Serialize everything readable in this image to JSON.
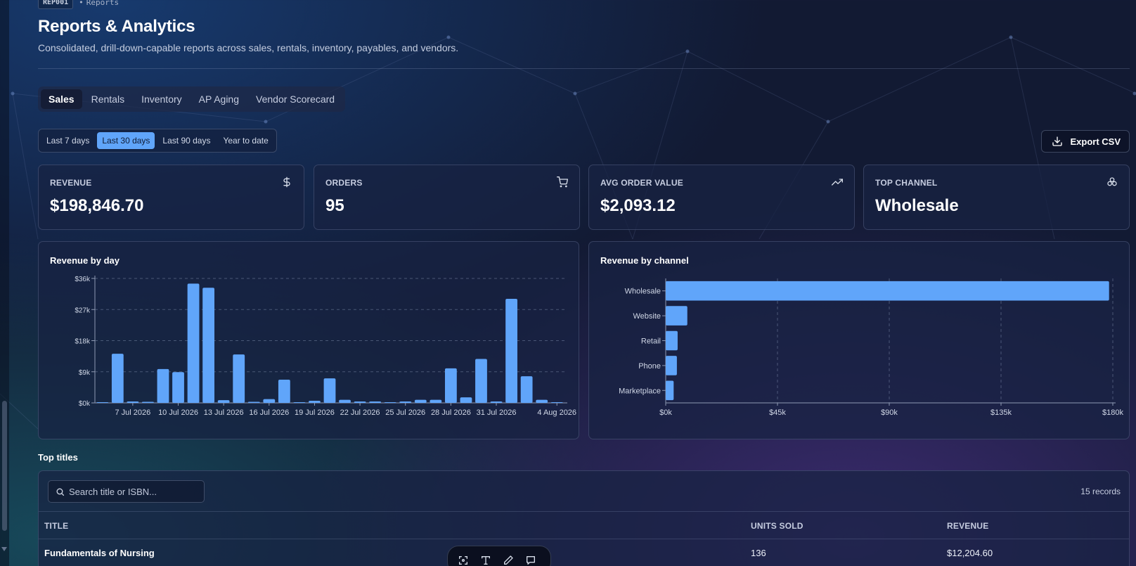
{
  "breadcrumb": {
    "code": "REP001",
    "separator": "•",
    "section": "Reports"
  },
  "header": {
    "title": "Reports & Analytics",
    "subtitle": "Consolidated, drill-down-capable reports across sales, rentals, inventory, payables, and vendors."
  },
  "tabs": [
    {
      "label": "Sales",
      "active": true
    },
    {
      "label": "Rentals",
      "active": false
    },
    {
      "label": "Inventory",
      "active": false
    },
    {
      "label": "AP Aging",
      "active": false
    },
    {
      "label": "Vendor Scorecard",
      "active": false
    }
  ],
  "ranges": [
    {
      "label": "Last 7 days",
      "active": false
    },
    {
      "label": "Last 30 days",
      "active": true
    },
    {
      "label": "Last 90 days",
      "active": false
    },
    {
      "label": "Year to date",
      "active": false
    }
  ],
  "export_label": "Export CSV",
  "kpis": [
    {
      "label": "REVENUE",
      "value": "$198,846.70",
      "icon": "dollar-icon"
    },
    {
      "label": "ORDERS",
      "value": "95",
      "icon": "cart-icon"
    },
    {
      "label": "AVG ORDER VALUE",
      "value": "$2,093.12",
      "icon": "trending-up-icon"
    },
    {
      "label": "TOP CHANNEL",
      "value": "Wholesale",
      "icon": "channels-icon"
    }
  ],
  "chart_data": [
    {
      "type": "bar",
      "title": "Revenue by day",
      "orientation": "vertical",
      "x_tick_labels": [
        "7 Jul 2026",
        "10 Jul 2026",
        "13 Jul 2026",
        "16 Jul 2026",
        "19 Jul 2026",
        "22 Jul 2026",
        "25 Jul 2026",
        "28 Jul 2026",
        "31 Jul 2026",
        "4 Aug 2026"
      ],
      "y_tick_labels": [
        "$0k",
        "$9k",
        "$18k",
        "$27k",
        "$36k"
      ],
      "ylim": [
        0,
        36000
      ],
      "values": [
        100,
        14200,
        400,
        300,
        9800,
        8900,
        34500,
        33300,
        800,
        14000,
        300,
        1100,
        6700,
        200,
        600,
        7100,
        900,
        400,
        400,
        200,
        400,
        900,
        900,
        10000,
        1600,
        12700,
        400,
        30100,
        7700,
        900,
        200
      ],
      "grid": "horizontal-dashed",
      "color": "#60a5fa"
    },
    {
      "type": "bar",
      "title": "Revenue by channel",
      "orientation": "horizontal",
      "categories": [
        "Wholesale",
        "Website",
        "Retail",
        "Phone",
        "Marketplace"
      ],
      "values": [
        178500,
        8700,
        4800,
        4500,
        3200
      ],
      "x_tick_labels": [
        "$0k",
        "$45k",
        "$90k",
        "$135k",
        "$180k"
      ],
      "xlim": [
        0,
        180000
      ],
      "grid": "vertical-dashed",
      "color": "#60a5fa"
    }
  ],
  "table": {
    "section_title": "Top titles",
    "search_placeholder": "Search title or ISBN...",
    "records_label": "15 records",
    "columns": [
      "TITLE",
      "UNITS SOLD",
      "REVENUE"
    ],
    "rows": [
      {
        "title": "Fundamentals of Nursing",
        "units": "136",
        "revenue": "$12,204.60"
      }
    ]
  },
  "colors": {
    "accent": "#60a5fa",
    "background": "#121a33",
    "card": "#18223f"
  }
}
